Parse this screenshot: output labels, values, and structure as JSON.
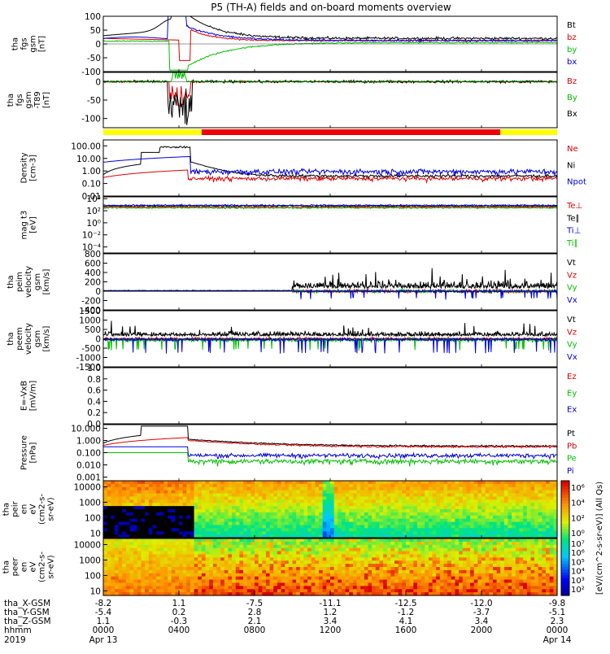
{
  "title": "P5 (TH-A) fields and on-board moments overview",
  "colors": {
    "black": "#000000",
    "red": "#e00000",
    "green": "#00c000",
    "blue": "#0000e0",
    "yellow": "#ffff00",
    "barred": "#ee0000"
  },
  "chart_data": {
    "type": "line",
    "panels": [
      {
        "id": "fgs-gsm",
        "ylabel": [
          "tha",
          "fgs",
          "gsm",
          "[nT]"
        ],
        "ylim": [
          -100,
          100
        ],
        "ticks": [
          "100",
          "50",
          "0",
          "-50",
          "-100"
        ],
        "tickvals": [
          100,
          50,
          0,
          -50,
          -100
        ],
        "scale": "linear",
        "legend": [
          {
            "name": "Bt",
            "color": "#000000"
          },
          {
            "name": "bz",
            "color": "#e00000"
          },
          {
            "name": "by",
            "color": "#00c000"
          },
          {
            "name": "bx",
            "color": "#0000e0"
          }
        ]
      },
      {
        "id": "fgs-dbgsm",
        "ylabel": [
          "tha",
          "fgs",
          "gsm",
          "-T89",
          "[nT]"
        ],
        "ylim": [
          -125,
          25
        ],
        "ticks": [
          "50",
          "0",
          "-50",
          "-100"
        ],
        "tickvals": [
          50,
          0,
          -50,
          -100
        ],
        "scale": "linear",
        "legend": [
          {
            "name": "Bz",
            "color": "#e00000"
          },
          {
            "name": "By",
            "color": "#00c000"
          },
          {
            "name": "Bx",
            "color": "#000000"
          }
        ]
      },
      {
        "id": "density",
        "ylabel": [
          "Density",
          "[cm-3]"
        ],
        "ylim": [
          0.01,
          300
        ],
        "ticks": [
          "100.00",
          "10.00",
          "1.00",
          "0.10",
          "0.01"
        ],
        "tickvals": [
          100,
          10,
          1,
          0.1,
          0.01
        ],
        "scale": "log",
        "legend": [
          {
            "name": "Ne",
            "color": "#e00000"
          },
          {
            "name": "Ni",
            "color": "#000000"
          },
          {
            "name": "Npot",
            "color": "#0000e0"
          }
        ]
      },
      {
        "id": "temperature",
        "ylabel": [
          "mag t3",
          "[eV]"
        ],
        "ylim": [
          1e-05,
          20000
        ],
        "ticks": [
          "10⁴",
          "10²",
          "10⁰",
          "10⁻²",
          "10⁻⁴"
        ],
        "tickvals": [
          10000,
          100,
          1,
          0.01,
          0.0001
        ],
        "scale": "log",
        "legend": [
          {
            "name": "Te⊥",
            "color": "#e00000"
          },
          {
            "name": "Te∥",
            "color": "#000000"
          },
          {
            "name": "Ti⊥",
            "color": "#0000e0"
          },
          {
            "name": "Ti∥",
            "color": "#00c000"
          }
        ]
      },
      {
        "id": "ion-velocity",
        "ylabel": [
          "tha",
          "peim",
          "velocity",
          "gsm",
          "[km/s]"
        ],
        "ylim": [
          -400,
          800
        ],
        "ticks": [
          "800",
          "600",
          "400",
          "200",
          "0",
          "-200",
          "-400"
        ],
        "tickvals": [
          800,
          600,
          400,
          200,
          0,
          -200,
          -400
        ],
        "scale": "linear",
        "legend": [
          {
            "name": "Vt",
            "color": "#000000"
          },
          {
            "name": "Vz",
            "color": "#e00000"
          },
          {
            "name": "Vy",
            "color": "#00c000"
          },
          {
            "name": "Vx",
            "color": "#0000e0"
          }
        ]
      },
      {
        "id": "electron-velocity",
        "ylabel": [
          "tha",
          "peem",
          "velocity",
          "gsm",
          "[km/s]"
        ],
        "ylim": [
          -1500,
          1500
        ],
        "ticks": [
          "1500",
          "1000",
          "500",
          "0",
          "-500",
          "-1000",
          "-1500"
        ],
        "tickvals": [
          1500,
          1000,
          500,
          0,
          -500,
          -1000,
          -1500
        ],
        "scale": "linear",
        "legend": [
          {
            "name": "Vt",
            "color": "#000000"
          },
          {
            "name": "Vz",
            "color": "#e00000"
          },
          {
            "name": "Vy",
            "color": "#00c000"
          },
          {
            "name": "Vx",
            "color": "#0000e0"
          }
        ]
      },
      {
        "id": "e-field",
        "ylabel": [
          "E=-VxB",
          "[mV/m]"
        ],
        "ylim": [
          0,
          1
        ],
        "ticks": [
          "1.0",
          "0.8",
          "0.6",
          "0.4",
          "0.2",
          "0.0"
        ],
        "tickvals": [
          1,
          0.8,
          0.6,
          0.4,
          0.2,
          0
        ],
        "scale": "linear",
        "legend": [
          {
            "name": "Ez",
            "color": "#e00000"
          },
          {
            "name": "Ey",
            "color": "#00c000"
          },
          {
            "name": "Ex",
            "color": "#0000e0"
          }
        ]
      },
      {
        "id": "pressure",
        "ylabel": [
          "Pressure",
          "[nPa]"
        ],
        "ylim": [
          0.0005,
          20
        ],
        "ticks": [
          "10.000",
          "1.000",
          "0.100",
          "0.010",
          "0.001"
        ],
        "tickvals": [
          10,
          1,
          0.1,
          0.01,
          0.001
        ],
        "scale": "log",
        "legend": [
          {
            "name": "Pt",
            "color": "#000000"
          },
          {
            "name": "Pb",
            "color": "#e00000"
          },
          {
            "name": "Pe",
            "color": "#00c000"
          },
          {
            "name": "Pi",
            "color": "#0000e0"
          }
        ]
      },
      {
        "id": "ion-spectrogram",
        "ylabel": [
          "tha",
          "peir",
          "en",
          "eV",
          "(cm2-s-",
          "sr-eV)"
        ],
        "ylim": [
          5,
          25000
        ],
        "ticks": [
          "10000",
          "1000",
          "100",
          "10"
        ],
        "tickvals": [
          10000,
          1000,
          100,
          10
        ],
        "scale": "log",
        "type": "heatmap",
        "legend": []
      },
      {
        "id": "electron-spectrogram",
        "ylabel": [
          "tha",
          "peer",
          "en",
          "eV",
          "(cm2-s-",
          "sr-eV)"
        ],
        "ylim": [
          5,
          25000
        ],
        "ticks": [
          "10000",
          "1000",
          "100",
          "10"
        ],
        "tickvals": [
          10000,
          1000,
          100,
          10
        ],
        "scale": "log",
        "type": "heatmap",
        "legend": []
      }
    ],
    "time_axis": {
      "rows": [
        {
          "label": "tha_X-GSM",
          "values": [
            "-8.2",
            "1.1",
            "-7.5",
            "-11.1",
            "-12.5",
            "-12.0",
            "-9.8"
          ]
        },
        {
          "label": "tha_Y-GSM",
          "values": [
            "-5.4",
            "0.2",
            "2.8",
            "1.2",
            "-1.2",
            "-3.7",
            "-5.1"
          ]
        },
        {
          "label": "tha_Z-GSM",
          "values": [
            "1.1",
            "-0.3",
            "2.1",
            "3.4",
            "4.1",
            "3.4",
            "2.3"
          ]
        },
        {
          "label": "hhmm",
          "values": [
            "0000",
            "0400",
            "0800",
            "1200",
            "1600",
            "2000",
            "0000"
          ]
        }
      ],
      "year": "2019",
      "dates": [
        {
          "text": "Apr 13",
          "slot": 0
        },
        {
          "text": "Apr 14",
          "slot": 6
        }
      ],
      "hours": [
        0,
        4,
        8,
        12,
        16,
        20,
        24
      ]
    },
    "region_bar": [
      {
        "start_hour": 0,
        "end_hour": 5.2,
        "color": "yellow"
      },
      {
        "start_hour": 5.2,
        "end_hour": 21.0,
        "color": "red"
      },
      {
        "start_hour": 21.0,
        "end_hour": 24,
        "color": "yellow"
      }
    ],
    "colorbar": {
      "label": "[eV/(cm^2-s-sr-eV)] (All Qs)",
      "ticks_top": [
        "10⁶",
        "10⁴",
        "10²",
        "10⁰"
      ],
      "ticks_bottom": [
        "10⁷",
        "10⁶",
        "10⁵",
        "10⁴",
        "10³",
        "10²"
      ]
    }
  }
}
